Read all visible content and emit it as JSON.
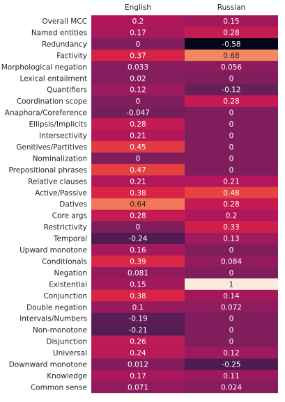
{
  "chart_data": {
    "type": "heatmap",
    "columns": [
      "English",
      "Russian"
    ],
    "rows": [
      "Overall MCC",
      "Named entities",
      "Redundancy",
      "Factivity",
      "Morphological negation",
      "Lexical entailment",
      "Quantifiers",
      "Coordination scope",
      "Anaphora/Coreference",
      "Ellipsis/Implicits",
      "Intersectivity",
      "Genitives/Partitives",
      "Nominalization",
      "Prepositional phrases",
      "Relative clauses",
      "Active/Passive",
      "Datives",
      "Core args",
      "Restrictivity",
      "Temporal",
      "Upward monotone",
      "Conditionals",
      "Negation",
      "Existential",
      "Conjunction",
      "Double negation",
      "Intervals/Numbers",
      "Non-monotone",
      "Disjunction",
      "Universal",
      "Downward monotone",
      "Knowledge",
      "Common sense"
    ],
    "values": [
      [
        0.2,
        0.15
      ],
      [
        0.17,
        0.28
      ],
      [
        0,
        -0.58
      ],
      [
        0.37,
        0.68
      ],
      [
        0.033,
        0.056
      ],
      [
        0.02,
        0
      ],
      [
        0.12,
        -0.12
      ],
      [
        0,
        0.28
      ],
      [
        -0.047,
        0
      ],
      [
        0.28,
        0
      ],
      [
        0.21,
        0
      ],
      [
        0.45,
        0
      ],
      [
        0,
        0
      ],
      [
        0.47,
        0
      ],
      [
        0.21,
        0.21
      ],
      [
        0.38,
        0.48
      ],
      [
        0.64,
        0.28
      ],
      [
        0.28,
        0.2
      ],
      [
        0,
        0.33
      ],
      [
        -0.24,
        0.13
      ],
      [
        0.16,
        0
      ],
      [
        0.39,
        0.084
      ],
      [
        0.081,
        0
      ],
      [
        0.15,
        1
      ],
      [
        0.38,
        0.14
      ],
      [
        0.1,
        0.072
      ],
      [
        -0.19,
        0
      ],
      [
        -0.21,
        0
      ],
      [
        0.26,
        0
      ],
      [
        0.24,
        0.12
      ],
      [
        0.012,
        -0.25
      ],
      [
        0.17,
        0.11
      ],
      [
        0.071,
        0.024
      ]
    ],
    "labels": [
      [
        "0.2",
        "0.15"
      ],
      [
        "0.17",
        "0.28"
      ],
      [
        "0",
        "-0.58"
      ],
      [
        "0.37",
        "0.68"
      ],
      [
        "0.033",
        "0.056"
      ],
      [
        "0.02",
        "0"
      ],
      [
        "0.12",
        "-0.12"
      ],
      [
        "0",
        "0.28"
      ],
      [
        "-0.047",
        "0"
      ],
      [
        "0.28",
        "0"
      ],
      [
        "0.21",
        "0"
      ],
      [
        "0.45",
        "0"
      ],
      [
        "0",
        "0"
      ],
      [
        "0.47",
        "0"
      ],
      [
        "0.21",
        "0.21"
      ],
      [
        "0.38",
        "0.48"
      ],
      [
        "0.64",
        "0.28"
      ],
      [
        "0.28",
        "0.2"
      ],
      [
        "0",
        "0.33"
      ],
      [
        "-0.24",
        "0.13"
      ],
      [
        "0.16",
        "0"
      ],
      [
        "0.39",
        "0.084"
      ],
      [
        "0.081",
        "0"
      ],
      [
        "0.15",
        "1"
      ],
      [
        "0.38",
        "0.14"
      ],
      [
        "0.1",
        "0.072"
      ],
      [
        "-0.19",
        "0"
      ],
      [
        "-0.21",
        "0"
      ],
      [
        "0.26",
        "0"
      ],
      [
        "0.24",
        "0.12"
      ],
      [
        "0.012",
        "-0.25"
      ],
      [
        "0.17",
        "0.11"
      ],
      [
        "0.071",
        "0.024"
      ]
    ],
    "colormap": "rocket",
    "value_range": [
      -0.58,
      1
    ],
    "column_labels_position": "top",
    "title": "",
    "xlabel": "",
    "ylabel": ""
  }
}
